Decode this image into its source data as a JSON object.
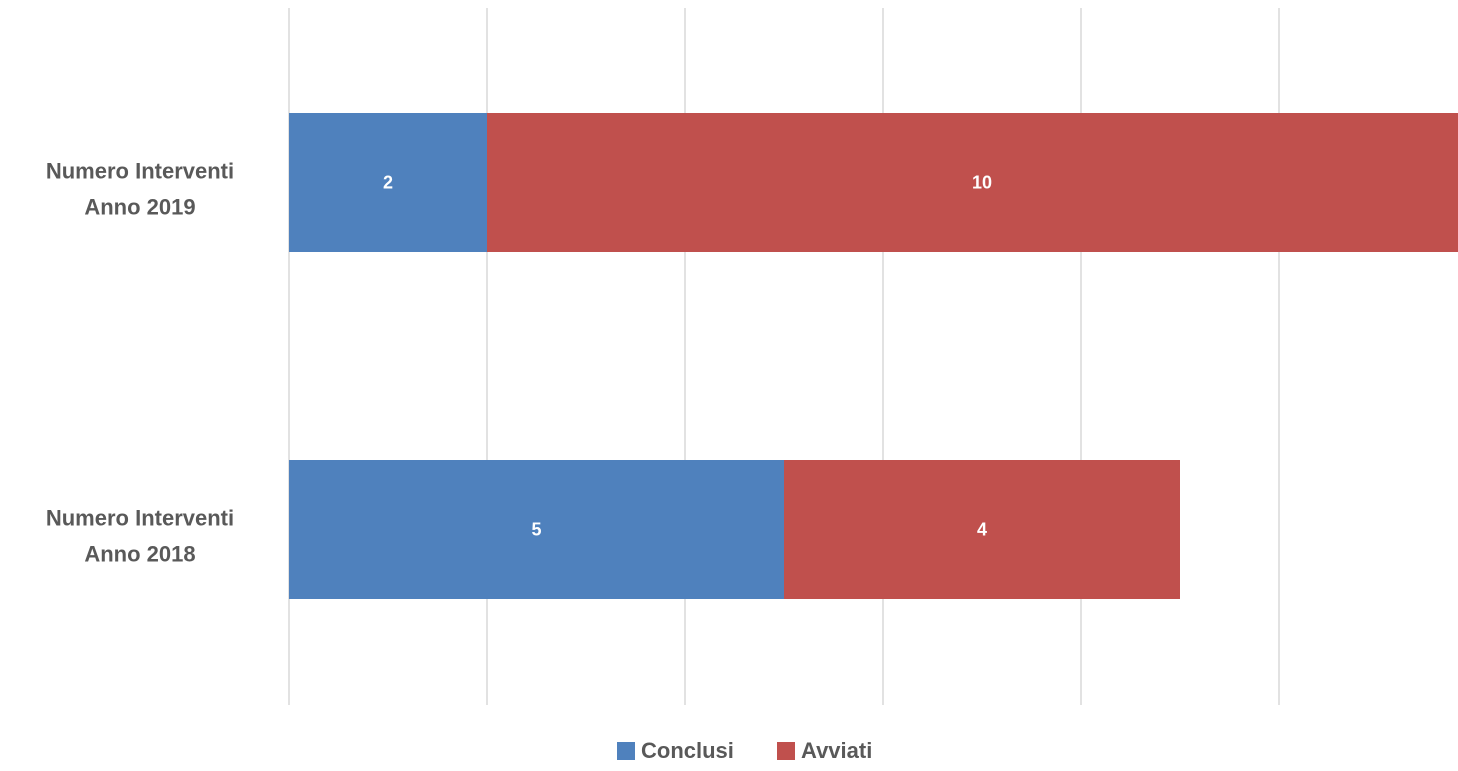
{
  "chart_data": {
    "type": "bar",
    "orientation": "horizontal",
    "stacked": true,
    "categories": [
      [
        "Numero Interventi",
        "Anno 2019"
      ],
      [
        "Numero Interventi",
        "Anno 2018"
      ]
    ],
    "series": [
      {
        "name": "Conclusi",
        "color": "#4f81bd",
        "values": [
          2,
          5
        ]
      },
      {
        "name": "Avviati",
        "color": "#c0504d",
        "values": [
          10,
          4
        ]
      }
    ],
    "xlim": [
      0,
      12
    ],
    "grid": true,
    "legend": "bottom"
  }
}
